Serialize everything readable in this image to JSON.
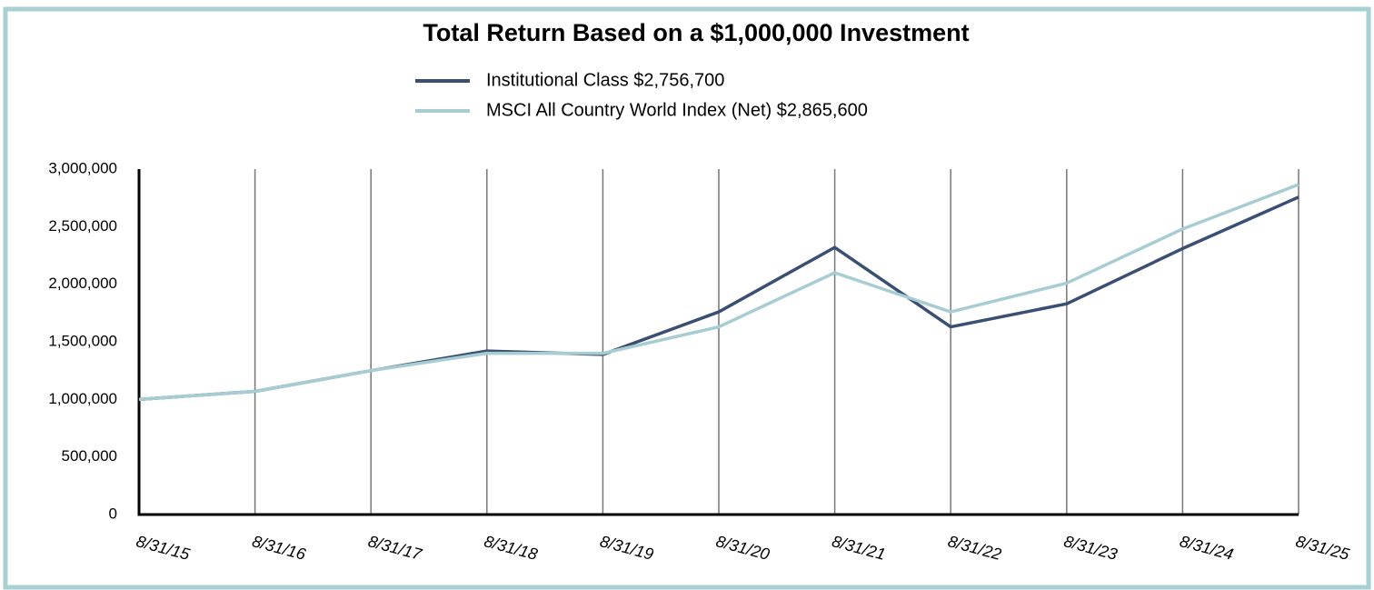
{
  "chart_data": {
    "type": "line",
    "title": "Total Return Based on a $1,000,000 Investment",
    "categories": [
      "8/31/15",
      "8/31/16",
      "8/31/17",
      "8/31/18",
      "8/31/19",
      "8/31/20",
      "8/31/21",
      "8/31/22",
      "8/31/23",
      "8/31/24",
      "8/31/25"
    ],
    "series": [
      {
        "name": "Institutional Class $2,756,700",
        "color": "#3b4f72",
        "values": [
          1000000,
          1070000,
          1250000,
          1420000,
          1390000,
          1760000,
          2320000,
          1630000,
          1830000,
          2310000,
          2756700
        ]
      },
      {
        "name": "MSCI All Country World Index (Net) $2,865,600",
        "color": "#a7cdd3",
        "values": [
          1000000,
          1070000,
          1250000,
          1400000,
          1400000,
          1630000,
          2100000,
          1760000,
          2010000,
          2480000,
          2865600
        ]
      }
    ],
    "ylim": [
      0,
      3000000
    ],
    "yticks": [
      0,
      {
        "value": 500000,
        "label": "500,000"
      },
      {
        "value": 1000000,
        "label": "1,000,000"
      },
      {
        "value": 1500000,
        "label": "1,500,000"
      },
      {
        "value": 2000000,
        "label": "2,000,000"
      },
      {
        "value": 2500000,
        "label": "2,500,000"
      },
      {
        "value": 3000000,
        "label": "3,000,000"
      }
    ],
    "grid": true,
    "legend": "top"
  }
}
